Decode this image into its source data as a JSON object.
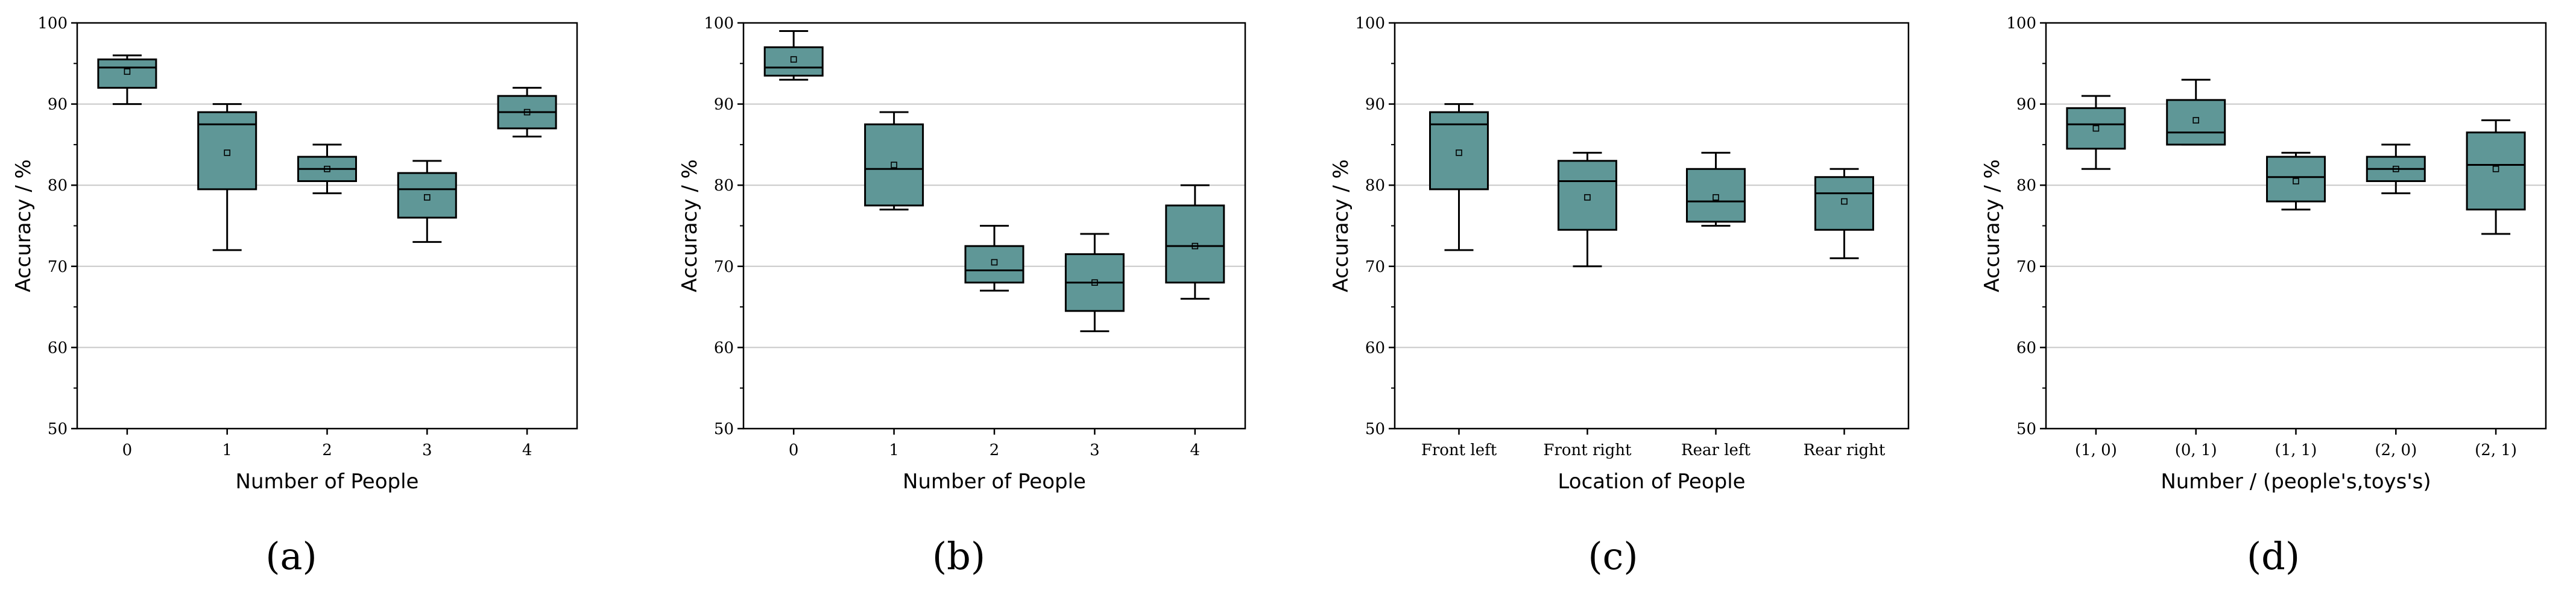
{
  "colors": {
    "box_fill": "#5f9797",
    "box_stroke": "#000000",
    "grid": "#c8c8c8",
    "axis": "#000000"
  },
  "chart_data": [
    {
      "type": "box",
      "panel_label": "(a)",
      "xlabel": "Number of People",
      "ylabel": "Accuracy / %",
      "ylim": [
        50,
        100
      ],
      "yticks": [
        50,
        60,
        70,
        80,
        90,
        100
      ],
      "grid": "horizontal",
      "tick_font": "serif",
      "categories": [
        "0",
        "1",
        "2",
        "3",
        "4"
      ],
      "boxes": [
        {
          "min": 90,
          "q1": 92,
          "median": 94.5,
          "q3": 95.5,
          "max": 96,
          "mean": 94
        },
        {
          "min": 72,
          "q1": 79.5,
          "median": 87.5,
          "q3": 89,
          "max": 90,
          "mean": 84
        },
        {
          "min": 79,
          "q1": 80.5,
          "median": 82,
          "q3": 83.5,
          "max": 85,
          "mean": 82
        },
        {
          "min": 73,
          "q1": 76,
          "median": 79.5,
          "q3": 81.5,
          "max": 83,
          "mean": 78.5
        },
        {
          "min": 86,
          "q1": 87,
          "median": 89,
          "q3": 91,
          "max": 92,
          "mean": 89
        }
      ]
    },
    {
      "type": "box",
      "panel_label": "(b)",
      "xlabel": "Number of People",
      "ylabel": "Accuracy / %",
      "ylim": [
        50,
        100
      ],
      "yticks": [
        50,
        60,
        70,
        80,
        90,
        100
      ],
      "grid": "horizontal",
      "tick_font": "serif",
      "categories": [
        "0",
        "1",
        "2",
        "3",
        "4"
      ],
      "boxes": [
        {
          "min": 93,
          "q1": 93.5,
          "median": 94.5,
          "q3": 97,
          "max": 99,
          "mean": 95.5
        },
        {
          "min": 77,
          "q1": 77.5,
          "median": 82,
          "q3": 87.5,
          "max": 89,
          "mean": 82.5
        },
        {
          "min": 67,
          "q1": 68,
          "median": 69.5,
          "q3": 72.5,
          "max": 75,
          "mean": 70.5
        },
        {
          "min": 62,
          "q1": 64.5,
          "median": 68,
          "q3": 71.5,
          "max": 74,
          "mean": 68
        },
        {
          "min": 66,
          "q1": 68,
          "median": 72.5,
          "q3": 77.5,
          "max": 80,
          "mean": 72.5
        }
      ]
    },
    {
      "type": "box",
      "panel_label": "(c)",
      "xlabel": "Location of People",
      "ylabel": "Accuracy / %",
      "ylim": [
        50,
        100
      ],
      "yticks": [
        50,
        60,
        70,
        80,
        90,
        100
      ],
      "grid": "horizontal",
      "tick_font": "serif",
      "categories": [
        "Front left",
        "Front right",
        "Rear left",
        "Rear right"
      ],
      "boxes": [
        {
          "min": 72,
          "q1": 79.5,
          "median": 87.5,
          "q3": 89,
          "max": 90,
          "mean": 84
        },
        {
          "min": 70,
          "q1": 74.5,
          "median": 80.5,
          "q3": 83,
          "max": 84,
          "mean": 78.5
        },
        {
          "min": 75,
          "q1": 75.5,
          "median": 78,
          "q3": 82,
          "max": 84,
          "mean": 78.5
        },
        {
          "min": 71,
          "q1": 74.5,
          "median": 79,
          "q3": 81,
          "max": 82,
          "mean": 78
        }
      ]
    },
    {
      "type": "box",
      "panel_label": "(d)",
      "xlabel": "Number / (people's,toys's)",
      "ylabel": "Accuracy / %",
      "ylim": [
        50,
        100
      ],
      "yticks": [
        50,
        60,
        70,
        80,
        90,
        100
      ],
      "grid": "horizontal",
      "tick_font": "serif",
      "categories": [
        "(1, 0)",
        "(0, 1)",
        "(1, 1)",
        "(2, 0)",
        "(2, 1)"
      ],
      "boxes": [
        {
          "min": 82,
          "q1": 84.5,
          "median": 87.5,
          "q3": 89.5,
          "max": 91,
          "mean": 87
        },
        {
          "min": 85,
          "q1": 85,
          "median": 86.5,
          "q3": 90.5,
          "max": 93,
          "mean": 88
        },
        {
          "min": 77,
          "q1": 78,
          "median": 81,
          "q3": 83.5,
          "max": 84,
          "mean": 80.5
        },
        {
          "min": 79,
          "q1": 80.5,
          "median": 82,
          "q3": 83.5,
          "max": 85,
          "mean": 82
        },
        {
          "min": 74,
          "q1": 77,
          "median": 82.5,
          "q3": 86.5,
          "max": 88,
          "mean": 82
        }
      ]
    }
  ]
}
